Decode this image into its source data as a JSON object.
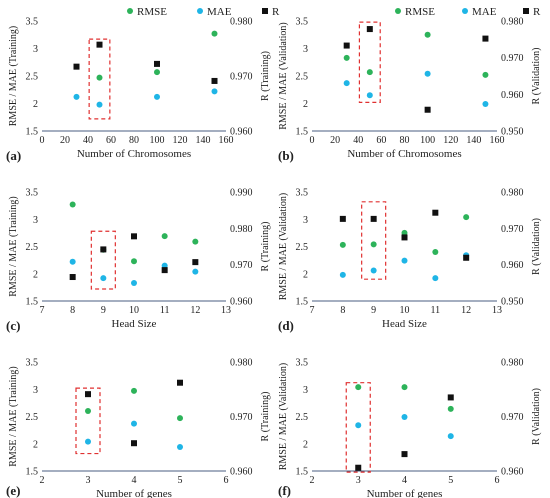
{
  "legend_labels": [
    "RMSE",
    "MAE",
    "R"
  ],
  "colors": {
    "RMSE": "#2db35a",
    "MAE": "#1fb5e6",
    "R": "#111111",
    "highlight": "#e03030",
    "axis": "#444444"
  },
  "chart_data": [
    {
      "type": "scatter",
      "panel_label": "(a)",
      "xlabel": "Number of Chromosomes",
      "ylabel": "RMSE / MAE (Training)",
      "y2label": "R (Training)",
      "xlim": [
        0,
        160
      ],
      "ylim": [
        1.5,
        3.5
      ],
      "y2lim": [
        0.96,
        0.98
      ],
      "xticks": [
        "0",
        "20",
        "40",
        "60",
        "80",
        "100",
        "120",
        "140",
        "160"
      ],
      "yticks": [
        "1.5",
        "2",
        "2.5",
        "3",
        "3.5"
      ],
      "y2ticks": [
        "0.960",
        "0.970",
        "0.980"
      ],
      "x": [
        30,
        50,
        100,
        150
      ],
      "series": [
        {
          "name": "RMSE",
          "axis": "left",
          "values": [
            null,
            2.47,
            2.57,
            3.27
          ]
        },
        {
          "name": "MAE",
          "axis": "left",
          "values": [
            2.12,
            1.98,
            2.12,
            2.22
          ]
        },
        {
          "name": "R",
          "axis": "right",
          "values": [
            0.9717,
            0.9757,
            0.9722,
            0.9691
          ]
        }
      ],
      "highlight_x": 50,
      "highlight_range": [
        1.72,
        3.17
      ]
    },
    {
      "type": "scatter",
      "panel_label": "(b)",
      "xlabel": "Number of Chromosomes",
      "ylabel": "RMSE / MAE (Validation)",
      "y2label": "R (Validation)",
      "xlim": [
        0,
        160
      ],
      "ylim": [
        1.5,
        3.5
      ],
      "y2lim": [
        0.95,
        0.98
      ],
      "xticks": [
        "0",
        "20",
        "40",
        "60",
        "80",
        "100",
        "120",
        "140",
        "160"
      ],
      "yticks": [
        "1.5",
        "2",
        "2.5",
        "3",
        "3.5"
      ],
      "y2ticks": [
        "0.950",
        "0.960",
        "0.970",
        "0.980"
      ],
      "x": [
        30,
        50,
        100,
        150
      ],
      "series": [
        {
          "name": "RMSE",
          "axis": "left",
          "values": [
            2.83,
            2.57,
            3.25,
            2.52
          ]
        },
        {
          "name": "MAE",
          "axis": "left",
          "values": [
            2.37,
            2.15,
            2.54,
            1.99
          ]
        },
        {
          "name": "R",
          "axis": "right",
          "values": [
            0.9733,
            0.9778,
            0.9558,
            0.9752
          ]
        }
      ],
      "highlight_x": 50,
      "highlight_range": [
        2.02,
        3.48
      ]
    },
    {
      "type": "scatter",
      "panel_label": "(c)",
      "xlabel": "Head Size",
      "ylabel": "RMSE / MAE (Training)",
      "y2label": "R (Training)",
      "xlim": [
        7,
        13
      ],
      "ylim": [
        1.5,
        3.5
      ],
      "y2lim": [
        0.96,
        0.99
      ],
      "xticks": [
        "7",
        "8",
        "9",
        "10",
        "11",
        "12",
        "13"
      ],
      "yticks": [
        "1.5",
        "2",
        "2.5",
        "3",
        "3.5"
      ],
      "y2ticks": [
        "0.960",
        "0.970",
        "0.980",
        "0.990"
      ],
      "x": [
        8,
        9,
        10,
        11,
        12
      ],
      "series": [
        {
          "name": "RMSE",
          "axis": "left",
          "values": [
            3.27,
            2.44,
            2.23,
            2.69,
            2.59
          ]
        },
        {
          "name": "MAE",
          "axis": "left",
          "values": [
            2.22,
            1.92,
            1.83,
            2.15,
            2.04
          ]
        },
        {
          "name": "R",
          "axis": "right",
          "values": [
            0.9666,
            0.9742,
            0.9778,
            0.9685,
            0.9707
          ]
        }
      ],
      "highlight_x": 9,
      "highlight_range": [
        1.72,
        2.78
      ]
    },
    {
      "type": "scatter",
      "panel_label": "(d)",
      "xlabel": "Head Size",
      "ylabel": "RMSE / MAE (Validation)",
      "y2label": "R (Validation)",
      "xlim": [
        7,
        13
      ],
      "ylim": [
        1.5,
        3.5
      ],
      "y2lim": [
        0.95,
        0.98
      ],
      "xticks": [
        "7",
        "8",
        "9",
        "10",
        "11",
        "12",
        "13"
      ],
      "yticks": [
        "1.5",
        "2",
        "2.5",
        "3",
        "3.5"
      ],
      "y2ticks": [
        "0.950",
        "0.960",
        "0.970",
        "0.980"
      ],
      "x": [
        8,
        9,
        10,
        11,
        12
      ],
      "series": [
        {
          "name": "RMSE",
          "axis": "left",
          "values": [
            2.53,
            2.54,
            2.75,
            2.4,
            3.04
          ]
        },
        {
          "name": "MAE",
          "axis": "left",
          "values": [
            1.98,
            2.06,
            2.24,
            1.92,
            2.34
          ]
        },
        {
          "name": "R",
          "axis": "right",
          "values": [
            0.9726,
            0.9726,
            0.9675,
            0.9743,
            0.9619
          ]
        }
      ],
      "highlight_x": 9,
      "highlight_range": [
        1.9,
        3.32
      ]
    },
    {
      "type": "scatter",
      "panel_label": "(e)",
      "xlabel": "Number of genes",
      "ylabel": "RMSE / MAE (Training)",
      "y2label": "R (Training)",
      "xlim": [
        2,
        6
      ],
      "ylim": [
        1.5,
        3.5
      ],
      "y2lim": [
        0.96,
        0.98
      ],
      "xticks": [
        "2",
        "3",
        "4",
        "5",
        "6"
      ],
      "yticks": [
        "1.5",
        "2",
        "2.5",
        "3",
        "3.5"
      ],
      "y2ticks": [
        "0.960",
        "0.970",
        "0.980"
      ],
      "x": [
        3,
        4,
        5
      ],
      "series": [
        {
          "name": "RMSE",
          "axis": "left",
          "values": [
            2.6,
            2.97,
            2.47
          ]
        },
        {
          "name": "MAE",
          "axis": "left",
          "values": [
            2.04,
            2.37,
            1.94
          ]
        },
        {
          "name": "R",
          "axis": "right",
          "values": [
            0.9741,
            0.9651,
            0.9762
          ]
        }
      ],
      "highlight_x": 3,
      "highlight_range": [
        1.82,
        3.02
      ]
    },
    {
      "type": "scatter",
      "panel_label": "(f)",
      "xlabel": "Number of genes",
      "ylabel": "RMSE / MAE (Validation)",
      "y2label": "R (Validation)",
      "xlim": [
        2,
        6
      ],
      "ylim": [
        1.5,
        3.5
      ],
      "y2lim": [
        0.96,
        0.98
      ],
      "xticks": [
        "2",
        "3",
        "4",
        "5",
        "6"
      ],
      "yticks": [
        "1.5",
        "2",
        "2.5",
        "3",
        "3.5"
      ],
      "y2ticks": [
        "0.960",
        "0.970",
        "0.980"
      ],
      "x": [
        3,
        4,
        5
      ],
      "series": [
        {
          "name": "RMSE",
          "axis": "left",
          "values": [
            3.04,
            3.04,
            2.64
          ]
        },
        {
          "name": "MAE",
          "axis": "left",
          "values": [
            2.34,
            2.49,
            2.14
          ]
        },
        {
          "name": "R",
          "axis": "right",
          "values": [
            0.9606,
            0.9631,
            0.9735
          ]
        }
      ],
      "highlight_x": 3,
      "highlight_range": [
        1.48,
        3.12
      ]
    }
  ]
}
